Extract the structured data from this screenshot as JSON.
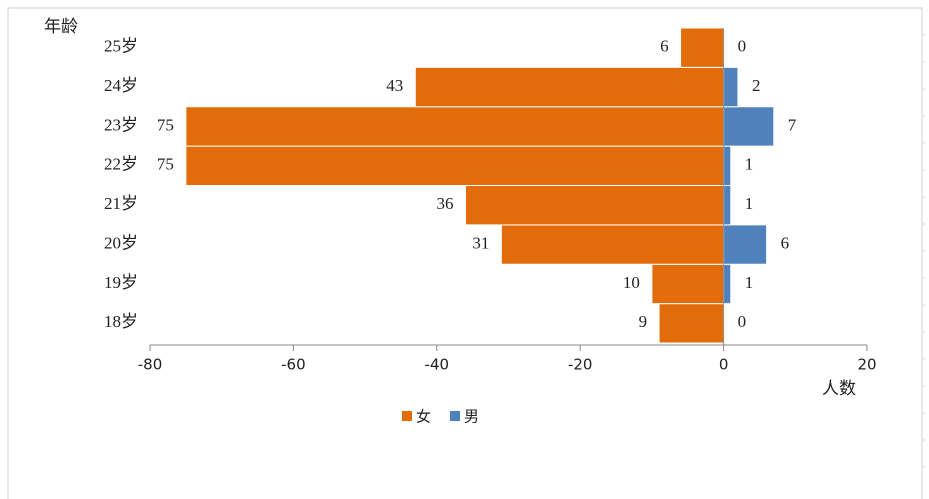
{
  "chart_data": {
    "type": "bar",
    "orientation": "horizontal",
    "y_label": "年龄",
    "x_label": "人数",
    "categories": [
      "18岁",
      "19岁",
      "20岁",
      "21岁",
      "22岁",
      "23岁",
      "24岁",
      "25岁"
    ],
    "series": [
      {
        "name": "女",
        "color": "#e36c0a",
        "values": [
          -9,
          -10,
          -31,
          -36,
          -75,
          -75,
          -43,
          -6
        ],
        "value_labels": [
          "9",
          "10",
          "31",
          "36",
          "75",
          "75",
          "43",
          "6"
        ]
      },
      {
        "name": "男",
        "color": "#4f81bd",
        "values": [
          0,
          1,
          6,
          1,
          1,
          7,
          2,
          0
        ]
      }
    ],
    "xlim": [
      -80,
      20
    ],
    "xticks": [
      -80,
      -60,
      -40,
      -20,
      0,
      20
    ],
    "legend": "bottom"
  }
}
